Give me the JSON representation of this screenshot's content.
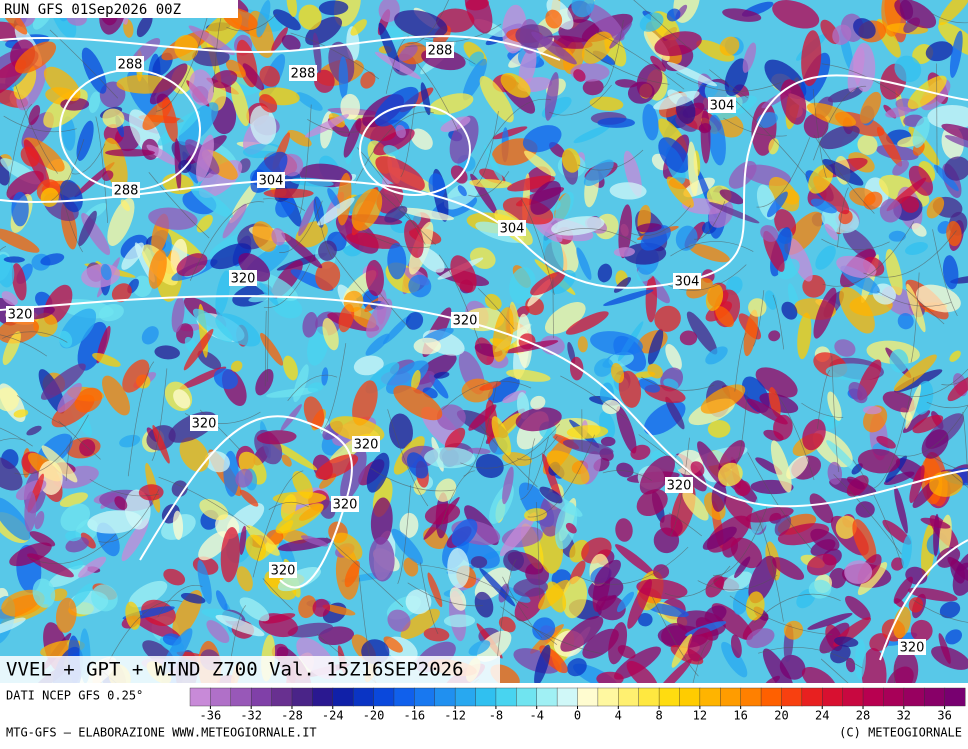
{
  "header": {
    "run": "RUN GFS 01Sep2026 00Z"
  },
  "map": {
    "title": "VVEL + GPT + WIND Z700 Val. 15Z16SEP2026",
    "contour_labels": [
      288,
      288,
      288,
      304,
      288,
      304,
      304,
      320,
      304,
      320,
      320,
      320,
      320,
      320,
      320,
      320,
      320
    ]
  },
  "footer": {
    "source": "DATI NCEP GFS 0.25°",
    "credit": "MTG-GFS — ELABORAZIONE WWW.METEOGIORNALE.IT",
    "copyright": "(C) METEOGIORNALE"
  },
  "colorbar": {
    "lim": [
      -38,
      38
    ],
    "ticks": [
      -36,
      -32,
      -28,
      -24,
      -20,
      -16,
      -12,
      -8,
      -4,
      0,
      4,
      8,
      12,
      16,
      20,
      24,
      28,
      32,
      36
    ],
    "colors": [
      "#c88ad8",
      "#b070c8",
      "#9858b8",
      "#8040a8",
      "#683090",
      "#4a2488",
      "#2a1890",
      "#1020a8",
      "#0a34c4",
      "#0a48dc",
      "#1060ec",
      "#1878f0",
      "#2090f0",
      "#28a8f0",
      "#30c0f0",
      "#48d4f0",
      "#70e4f0",
      "#a0f0f4",
      "#d0f8f8",
      "#fffcd0",
      "#fff8a0",
      "#fff070",
      "#ffe840",
      "#ffdc10",
      "#ffcc00",
      "#ffb400",
      "#ff9c00",
      "#ff8000",
      "#ff6000",
      "#f84010",
      "#e82020",
      "#d81030",
      "#c80840",
      "#b80050",
      "#a80058",
      "#980060",
      "#880068",
      "#780070"
    ]
  }
}
